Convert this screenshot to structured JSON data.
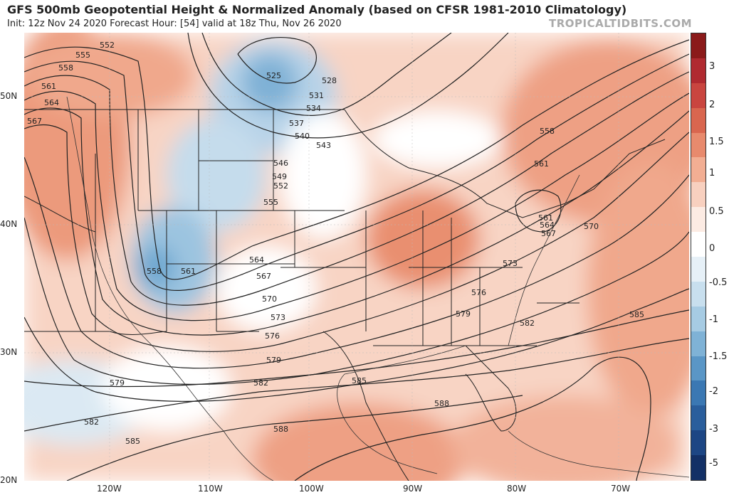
{
  "header": {
    "title": "GFS 500mb Geopotential Height & Normalized Anomaly (based on CFSR 1981-2010 Climatology)",
    "subtitle": "Init: 12z Nov 24 2020   Forecast Hour: [54]   valid at 18z Thu, Nov 26 2020",
    "brand": "TROPICALTIDBITS.COM"
  },
  "axes": {
    "lat_labels": [
      "50N",
      "40N",
      "30N",
      "20N"
    ],
    "lon_labels": [
      "120W",
      "110W",
      "100W",
      "90W",
      "80W",
      "70W"
    ]
  },
  "colorbar": {
    "labels": [
      "3",
      "2",
      "1.5",
      "1",
      "0.5",
      "0",
      "-0.5",
      "-1",
      "-1.5",
      "-2",
      "-3",
      "-5"
    ],
    "colors": [
      "#8b1a1a",
      "#b02a30",
      "#c9453f",
      "#d9664f",
      "#e88a6d",
      "#f2ae93",
      "#f8d0bf",
      "#fcebe3",
      "#ffffff",
      "#e6f0f7",
      "#c8dfee",
      "#a6cbe3",
      "#7fb2d6",
      "#5a96c6",
      "#3b78b3",
      "#2a5e9c",
      "#1d4684",
      "#133066"
    ]
  },
  "contours": {
    "labels": [
      "552",
      "555",
      "558",
      "561",
      "564",
      "567",
      "525",
      "528",
      "531",
      "534",
      "537",
      "540",
      "543",
      "546",
      "549",
      "552",
      "555",
      "558",
      "561",
      "564",
      "567",
      "570",
      "573",
      "576",
      "579",
      "579",
      "582",
      "582",
      "585",
      "585",
      "588",
      "588",
      "585",
      "582",
      "579",
      "576",
      "573",
      "570",
      "564",
      "561",
      "567",
      "561",
      "558"
    ]
  }
}
